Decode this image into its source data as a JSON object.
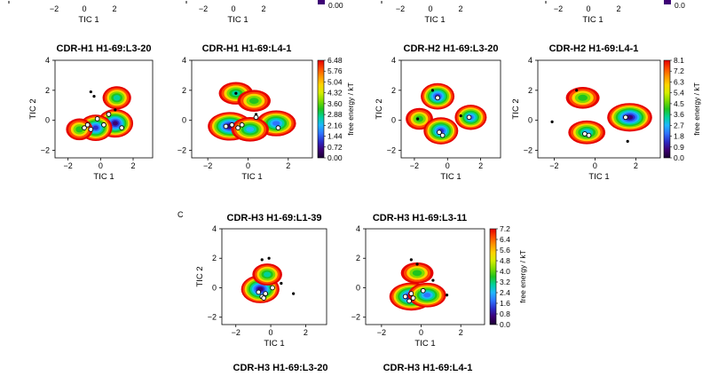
{
  "panel_letter": "C",
  "colors": {
    "scale": [
      "#1a0033",
      "#3d0075",
      "#2c2cc8",
      "#2f74ff",
      "#1fb6ff",
      "#00d29b",
      "#1fc41f",
      "#7fdc00",
      "#d6ee00",
      "#ffd400",
      "#ff9600",
      "#ff4a00",
      "#e50000"
    ],
    "marker_fill": "#ffffff",
    "marker_edge": "#000000",
    "state_dot": "#000000"
  },
  "axis": {
    "xlabel": "TIC 1",
    "ylabel": "TIC 2",
    "cbar_label": "free energy / kT"
  },
  "top_strip": {
    "xlabels": [
      "TIC 1",
      "TIC 1",
      "TIC 1",
      "TIC 1"
    ],
    "xticks": [
      "−2",
      "0",
      "2"
    ],
    "cbar_ticks": [
      "0.00",
      "0.0"
    ]
  },
  "colorbars": {
    "h1": [
      "6.48",
      "5.76",
      "5.04",
      "4.32",
      "3.60",
      "2.88",
      "2.16",
      "1.44",
      "0.72",
      "0.00"
    ],
    "h2": [
      "8.1",
      "7.2",
      "6.3",
      "5.4",
      "4.5",
      "3.6",
      "2.7",
      "1.8",
      "0.9",
      "0.0"
    ],
    "h3": [
      "7.2",
      "6.4",
      "5.6",
      "4.8",
      "4.0",
      "3.2",
      "2.4",
      "1.6",
      "0.8",
      "0.0"
    ]
  },
  "chart_data": [
    {
      "type": "heatmap",
      "title": "CDR-H1 H1-69:L3-20",
      "xlabel": "TIC 1",
      "ylabel": "TIC 2",
      "xlim": [
        -2.8,
        3.2
      ],
      "ylim": [
        -2.5,
        4
      ],
      "xticks": [
        "−2",
        "0",
        "2"
      ],
      "yticks": [
        "4",
        "2",
        "0",
        "−2"
      ],
      "colorbar": "h1",
      "basins": [
        {
          "x": 0.9,
          "y": -0.2,
          "depth": 1.0
        },
        {
          "x": -0.3,
          "y": -0.5,
          "depth": 0.85
        },
        {
          "x": 1.0,
          "y": 1.5,
          "depth": 0.6
        },
        {
          "x": -1.3,
          "y": -0.6,
          "depth": 0.5
        }
      ],
      "centers": [
        [
          -1.0,
          -0.5
        ],
        [
          -0.8,
          -0.3
        ],
        [
          -0.6,
          -0.6
        ],
        [
          -0.2,
          0.1
        ],
        [
          0.5,
          0.4
        ],
        [
          1.3,
          -0.5
        ],
        [
          0.2,
          -0.3
        ]
      ],
      "states": [
        [
          -0.6,
          1.9
        ],
        [
          -0.4,
          1.6
        ],
        [
          0.9,
          0.7
        ]
      ]
    },
    {
      "type": "heatmap",
      "title": "CDR-H1 H1-69:L4-1",
      "xlabel": "TIC 1",
      "ylabel": "",
      "xlim": [
        -2.8,
        3.2
      ],
      "ylim": [
        -2.5,
        4
      ],
      "xticks": [
        "−2",
        "0",
        "2"
      ],
      "yticks": [
        "4",
        "2",
        "0",
        "−2"
      ],
      "colorbar": "h1",
      "basins": [
        {
          "x": -0.9,
          "y": -0.4,
          "depth": 1.0
        },
        {
          "x": 1.4,
          "y": -0.2,
          "depth": 0.8
        },
        {
          "x": -0.6,
          "y": 1.8,
          "depth": 0.55
        },
        {
          "x": 0.3,
          "y": 1.3,
          "depth": 0.5
        },
        {
          "x": 0.1,
          "y": -0.6,
          "depth": 0.7
        }
      ],
      "centers": [
        [
          -1.1,
          -0.4
        ],
        [
          -0.8,
          -0.3
        ],
        [
          -0.5,
          -0.5
        ],
        [
          -0.3,
          -0.3
        ],
        [
          0.4,
          0.2
        ],
        [
          1.5,
          -0.5
        ]
      ],
      "states": [
        [
          -0.6,
          1.8
        ],
        [
          0.4,
          0.4
        ]
      ]
    },
    {
      "type": "heatmap",
      "title": "CDR-H2 H1-69:L3-20",
      "xlabel": "TIC 1",
      "ylabel": "TIC 2",
      "xlim": [
        -2.8,
        3.2
      ],
      "ylim": [
        -2.5,
        4
      ],
      "xticks": [
        "−2",
        "0",
        "2"
      ],
      "yticks": [
        "4",
        "2",
        "0",
        "−2"
      ],
      "colorbar": "h2",
      "basins": [
        {
          "x": -0.6,
          "y": 1.6,
          "depth": 0.85
        },
        {
          "x": -1.7,
          "y": 0.1,
          "depth": 0.5
        },
        {
          "x": -0.4,
          "y": -0.7,
          "depth": 0.9
        },
        {
          "x": 1.4,
          "y": 0.2,
          "depth": 0.75
        }
      ],
      "centers": [
        [
          -0.6,
          1.5
        ],
        [
          -0.5,
          -0.8
        ],
        [
          -0.3,
          -1.0
        ],
        [
          1.3,
          0.2
        ]
      ],
      "states": [
        [
          -0.9,
          2.0
        ],
        [
          -1.8,
          0.1
        ],
        [
          0.8,
          0.3
        ]
      ]
    },
    {
      "type": "heatmap",
      "title": "CDR-H2 H1-69:L4-1",
      "xlabel": "TIC 1",
      "ylabel": "TIC 2",
      "xlim": [
        -2.8,
        3.2
      ],
      "ylim": [
        -2.5,
        4
      ],
      "xticks": [
        "−2",
        "0",
        "2"
      ],
      "yticks": [
        "4",
        "2",
        "0",
        "−2"
      ],
      "colorbar": "h2",
      "basins": [
        {
          "x": -0.6,
          "y": 1.5,
          "depth": 0.5
        },
        {
          "x": -0.4,
          "y": -0.8,
          "depth": 0.65
        },
        {
          "x": 1.7,
          "y": 0.2,
          "depth": 1.0
        }
      ],
      "centers": [
        [
          -0.5,
          -0.9
        ],
        [
          -0.3,
          -1.0
        ],
        [
          1.5,
          0.2
        ]
      ],
      "states": [
        [
          -0.9,
          2.0
        ],
        [
          -2.1,
          -0.1
        ],
        [
          1.6,
          -1.4
        ]
      ]
    },
    {
      "type": "heatmap",
      "title": "CDR-H3 H1-69:L1-39",
      "xlabel": "TIC 1",
      "ylabel": "TIC 2",
      "xlim": [
        -2.8,
        3.2
      ],
      "ylim": [
        -2.5,
        4
      ],
      "xticks": [
        "−2",
        "0",
        "2"
      ],
      "yticks": [
        "4",
        "2",
        "0",
        "−2"
      ],
      "colorbar": "h3",
      "basins": [
        {
          "x": -0.6,
          "y": -0.1,
          "depth": 1.0
        },
        {
          "x": -0.2,
          "y": 0.9,
          "depth": 0.55
        }
      ],
      "centers": [
        [
          -0.7,
          -0.3
        ],
        [
          -0.5,
          -0.6
        ],
        [
          -0.3,
          -0.4
        ],
        [
          -0.4,
          -0.7
        ],
        [
          0.1,
          0.0
        ]
      ],
      "states": [
        [
          -0.5,
          1.9
        ],
        [
          -0.1,
          2.0
        ],
        [
          0.6,
          0.3
        ],
        [
          1.3,
          -0.4
        ]
      ]
    },
    {
      "type": "heatmap",
      "title": "CDR-H3 H1-69:L3-11",
      "xlabel": "TIC 1",
      "ylabel": "",
      "xlim": [
        -2.8,
        3.2
      ],
      "ylim": [
        -2.5,
        4
      ],
      "xticks": [
        "−2",
        "0",
        "2"
      ],
      "yticks": [
        "4",
        "2",
        "0",
        "−2"
      ],
      "colorbar": "h3",
      "basins": [
        {
          "x": -0.5,
          "y": -0.6,
          "depth": 1.0
        },
        {
          "x": 0.3,
          "y": -0.5,
          "depth": 0.75
        },
        {
          "x": -0.2,
          "y": 1.0,
          "depth": 0.5
        }
      ],
      "centers": [
        [
          -0.8,
          -0.6
        ],
        [
          -0.5,
          -0.4
        ],
        [
          -0.4,
          -0.7
        ],
        [
          -0.6,
          -0.9
        ],
        [
          0.1,
          -0.2
        ]
      ],
      "states": [
        [
          -0.5,
          1.9
        ],
        [
          -0.2,
          1.6
        ],
        [
          0.6,
          0.5
        ],
        [
          1.3,
          -0.5
        ]
      ]
    }
  ],
  "bottom_strip": {
    "titles": [
      "CDR-H3 H1-69:L3-20",
      "CDR-H3 H1-69:L4-1"
    ]
  }
}
